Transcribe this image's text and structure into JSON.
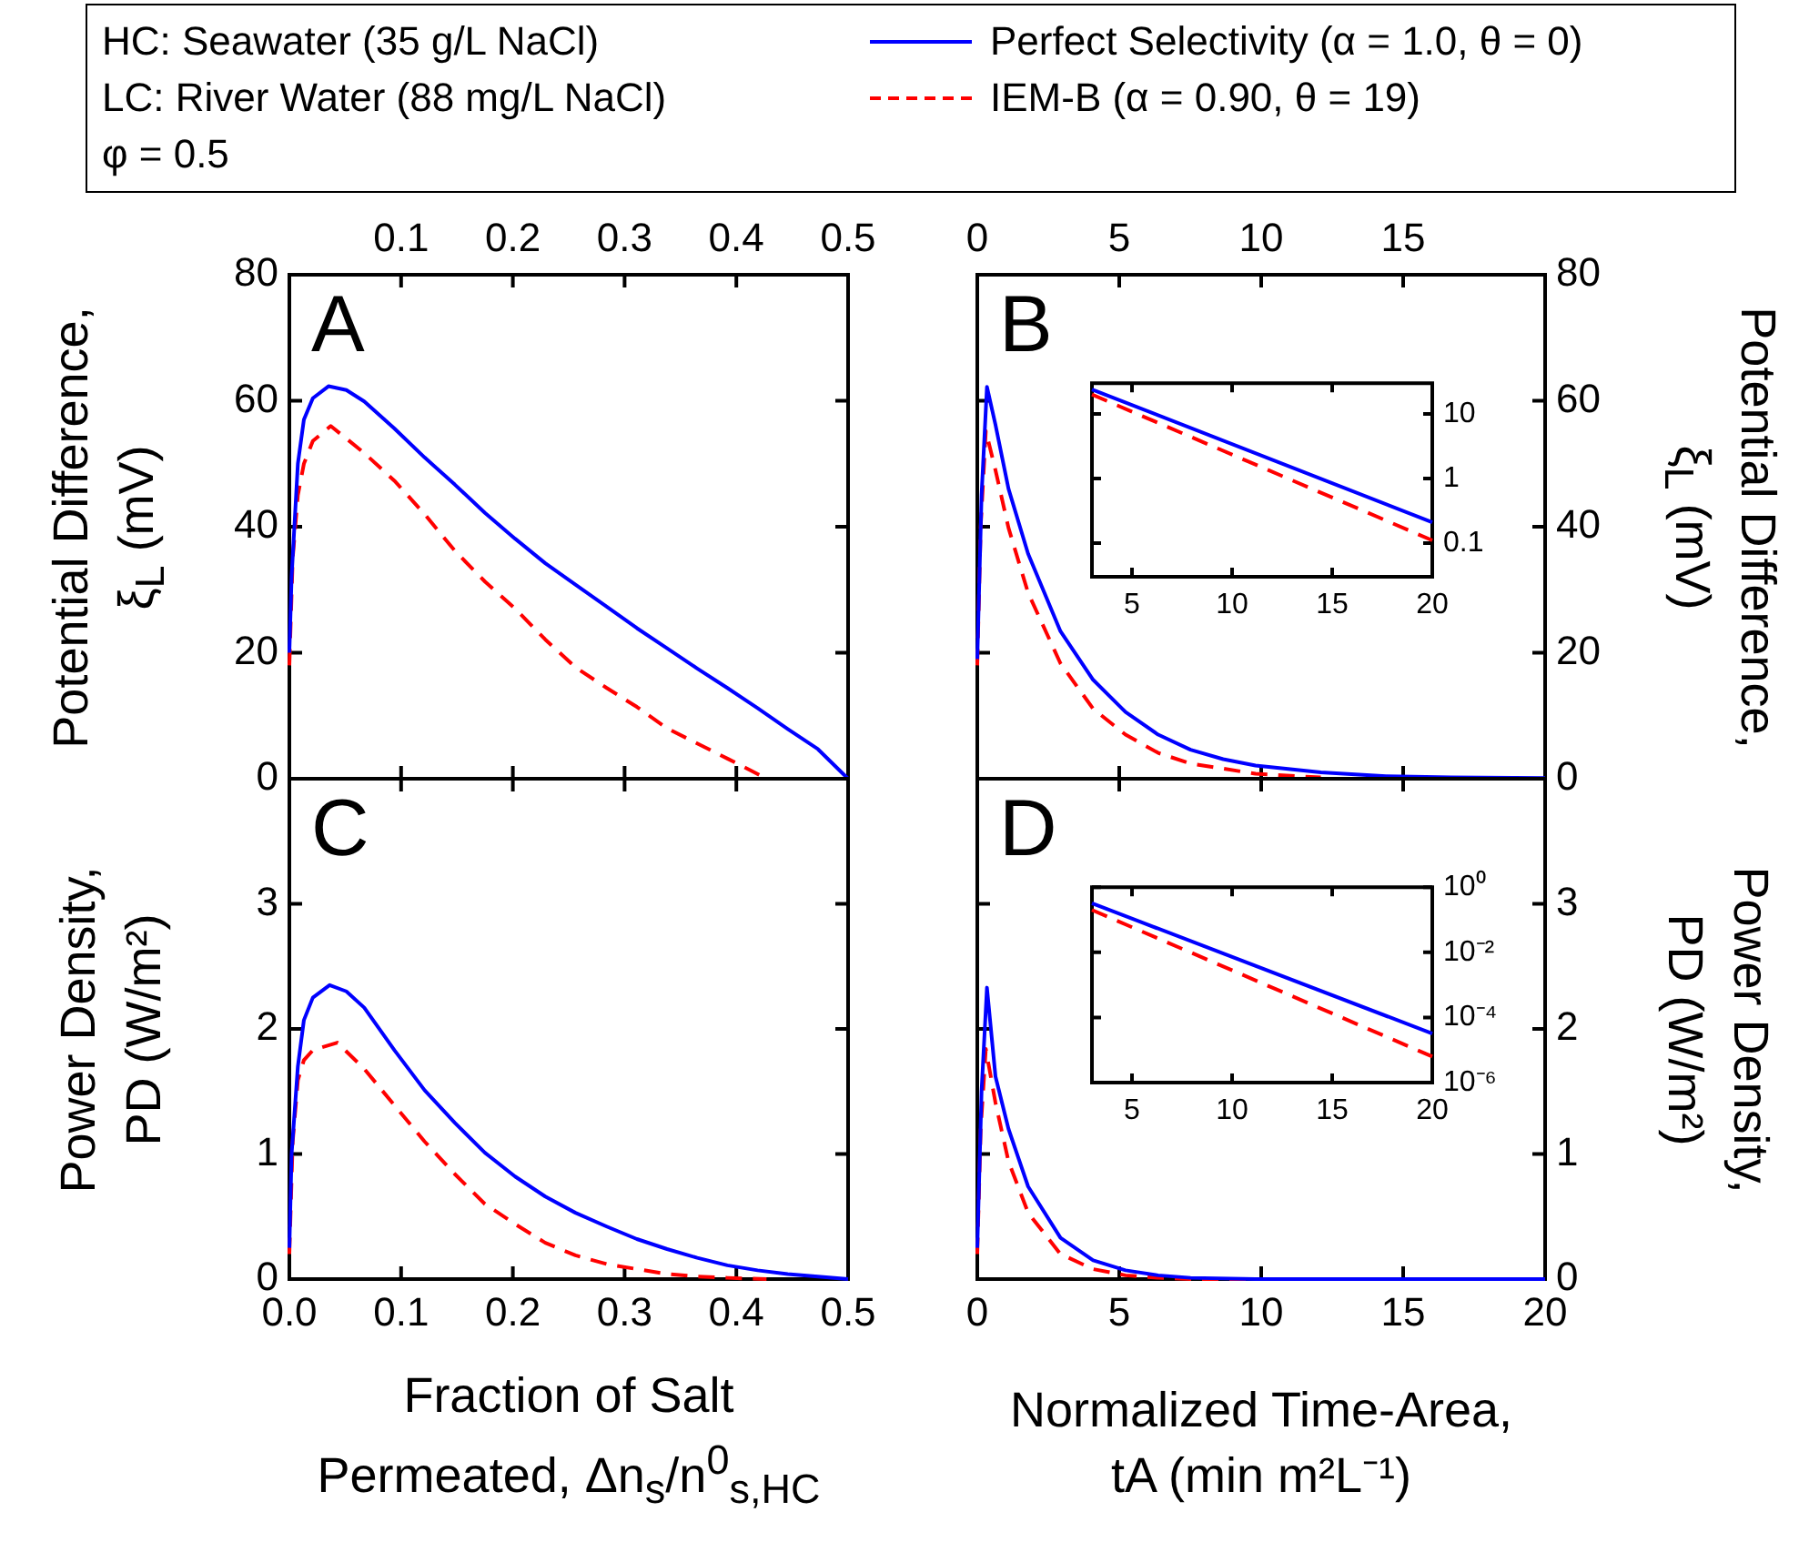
{
  "chart_data": [
    {
      "type": "line",
      "annotations": [
        "A"
      ],
      "legend": "top",
      "marker": "none",
      "ylabel": "Potential Difference,\nξ$_{L}$ (mV)",
      "tick_labels": "y",
      "xlim": [
        0,
        0.5
      ],
      "x2lim": [
        0,
        0.5
      ],
      "x2ticks": [
        {
          "value": 0,
          "label": null
        },
        0.1,
        0.2,
        0.3,
        0.4,
        0.5
      ],
      "ylim": [
        0,
        80
      ],
      "yticks": [
        0,
        20,
        40,
        60,
        80
      ],
      "series": [
        {
          "name": "Perfect Selectivity (α = 1.0, θ = 0)",
          "color": "#0000ff",
          "line_style": "solid",
          "x": [
            0,
            0.002,
            0.0076,
            0.013,
            0.021,
            0.035,
            0.051,
            0.067,
            0.094,
            0.121,
            0.148,
            0.175,
            0.202,
            0.229,
            0.256,
            0.284,
            0.311,
            0.338,
            0.365,
            0.392,
            0.419,
            0.446,
            0.473,
            0.5
          ],
          "values": [
            20,
            32,
            50,
            57,
            60.4,
            62.3,
            61.7,
            59.9,
            55.6,
            51,
            46.7,
            42.2,
            38.1,
            34.2,
            30.8,
            27.3,
            23.9,
            20.7,
            17.5,
            14.4,
            11.2,
            7.9,
            4.7,
            0
          ]
        },
        {
          "name": "IEM-B (α = 0.90, θ = 19)",
          "color": "#ff0000",
          "line_style": "dashed",
          "x": [
            0,
            0.003,
            0.0076,
            0.013,
            0.021,
            0.037,
            0.067,
            0.094,
            0.121,
            0.148,
            0.175,
            0.202,
            0.229,
            0.256,
            0.284,
            0.311,
            0.338,
            0.365,
            0.392,
            0.413,
            0.427
          ],
          "values": [
            18,
            35,
            45,
            50,
            53.6,
            56,
            51.7,
            47.3,
            42,
            36.2,
            31.3,
            27,
            22.1,
            17.7,
            14.4,
            11.4,
            8,
            5.6,
            3.2,
            1.3,
            0
          ]
        }
      ]
    },
    {
      "type": "line",
      "annotations": [
        "B"
      ],
      "marker": "none",
      "y2label": "Potential Difference,\nξ$_{L}$ (mV)",
      "tick_labels": "y",
      "xlim": [
        0,
        20
      ],
      "x2lim": [
        0,
        20
      ],
      "x2ticks": [
        0,
        5,
        10,
        15,
        {
          "value": 20,
          "label": null
        }
      ],
      "y2lim": [
        0,
        80
      ],
      "y2ticks": [
        0,
        20,
        40,
        60,
        80
      ],
      "series": [
        {
          "color": "#0000ff",
          "line_style": "solid",
          "axis": "y2",
          "x": [
            0,
            0.15,
            0.34,
            0.64,
            1.1,
            1.79,
            2.93,
            4.08,
            5.22,
            6.37,
            7.51,
            8.66,
            9.8,
            12.1,
            14.4,
            16.7,
            20
          ],
          "values": [
            19,
            45,
            62.2,
            56.2,
            46,
            35.7,
            23.4,
            15.7,
            10.6,
            7,
            4.6,
            3.1,
            2.1,
            1,
            0.4,
            0.2,
            0.1
          ]
        },
        {
          "color": "#ff0000",
          "line_style": "dashed",
          "axis": "y2",
          "x": [
            0,
            0.12,
            0.3,
            0.64,
            1.1,
            1.79,
            2.93,
            4.08,
            5.22,
            6.37,
            7.51,
            9.8,
            12.1
          ],
          "values": [
            18,
            40,
            55.2,
            49,
            39.8,
            29.5,
            18.3,
            11.1,
            7,
            4.1,
            2.4,
            0.8,
            0.2
          ]
        }
      ]
    },
    {
      "type": "line",
      "annotations": [
        "C"
      ],
      "marker": "none",
      "ylabel": "Power Density,\nPD (W/m²)",
      "xlabel": "Fraction of Salt\nPermeated, Δn$_{s}$/n$^{0}$$_{s,HC}$",
      "xlim": [
        0,
        0.5
      ],
      "xticks": [
        {
          "value": 0,
          "label": "0.0"
        },
        0.1,
        0.2,
        0.3,
        0.4,
        0.5
      ],
      "ylim": [
        0,
        4
      ],
      "yticks": [
        0,
        1,
        2,
        3
      ],
      "series": [
        {
          "color": "#0000ff",
          "line_style": "solid",
          "x": [
            0,
            0.002,
            0.0076,
            0.013,
            0.021,
            0.036,
            0.051,
            0.067,
            0.094,
            0.121,
            0.148,
            0.175,
            0.202,
            0.229,
            0.256,
            0.284,
            0.311,
            0.338,
            0.365,
            0.392,
            0.419,
            0.446,
            0.473,
            0.5
          ],
          "values": [
            0.25,
            1,
            1.7,
            2.07,
            2.25,
            2.35,
            2.3,
            2.17,
            1.83,
            1.51,
            1.25,
            1.01,
            0.82,
            0.66,
            0.53,
            0.42,
            0.32,
            0.24,
            0.17,
            0.11,
            0.07,
            0.04,
            0.02,
            0
          ]
        },
        {
          "color": "#ff0000",
          "line_style": "dashed",
          "x": [
            0,
            0.003,
            0.0076,
            0.013,
            0.021,
            0.043,
            0.067,
            0.094,
            0.121,
            0.148,
            0.175,
            0.202,
            0.229,
            0.256,
            0.284,
            0.311,
            0.338,
            0.365,
            0.392,
            0.427
          ],
          "values": [
            0.2,
            1.1,
            1.59,
            1.75,
            1.83,
            1.89,
            1.68,
            1.39,
            1.1,
            0.84,
            0.6,
            0.44,
            0.29,
            0.19,
            0.12,
            0.08,
            0.04,
            0.02,
            0.01,
            0
          ]
        }
      ]
    },
    {
      "type": "line",
      "annotations": [
        "D"
      ],
      "marker": "none",
      "y2label": "Power Density,\nPD (W/m²)",
      "xlabel": "Normalized Time-Area,\ntA (min m²L⁻¹)",
      "xlim": [
        0,
        20
      ],
      "xticks": [
        0,
        5,
        10,
        15,
        20
      ],
      "y2lim": [
        0,
        4
      ],
      "y2ticks": [
        0,
        1,
        2,
        3
      ],
      "series": [
        {
          "color": "#0000ff",
          "line_style": "solid",
          "axis": "y2",
          "x": [
            0,
            0.15,
            0.34,
            0.64,
            1.1,
            1.79,
            2.93,
            4.08,
            5.22,
            6.37,
            7.51,
            9.8,
            20
          ],
          "values": [
            0.25,
            1.5,
            2.33,
            1.62,
            1.2,
            0.74,
            0.33,
            0.15,
            0.07,
            0.03,
            0.01,
            0,
            0
          ]
        },
        {
          "color": "#ff0000",
          "line_style": "dashed",
          "axis": "y2",
          "x": [
            0,
            0.12,
            0.3,
            0.64,
            1.1,
            1.79,
            2.93,
            4.08,
            5.22,
            6.37,
            7.51,
            20
          ],
          "values": [
            0.2,
            1.2,
            1.84,
            1.41,
            0.94,
            0.53,
            0.2,
            0.08,
            0.03,
            0.01,
            0,
            0
          ]
        }
      ]
    },
    {
      "type": "line",
      "marker": "none",
      "log": "y2",
      "xlim": [
        3,
        20
      ],
      "xticks": [
        5,
        10,
        15,
        20
      ],
      "y2lim": [
        0.03,
        30
      ],
      "y2ticks": [
        0.1,
        1,
        10
      ],
      "series": [
        {
          "color": "#0000ff",
          "line_style": "solid",
          "axis": "y2",
          "x": [
            3,
            20
          ],
          "values": [
            24,
            0.21
          ]
        },
        {
          "color": "#ff0000",
          "line_style": "dashed",
          "axis": "y2",
          "x": [
            3,
            20
          ],
          "values": [
            20,
            0.11
          ]
        }
      ]
    },
    {
      "type": "line",
      "marker": "none",
      "log": "y2",
      "xlim": [
        3,
        20
      ],
      "xticks": [
        5,
        10,
        15,
        20
      ],
      "y2lim": [
        1e-06,
        1
      ],
      "y2ticks": [
        {
          "value": 1,
          "label": "10⁰"
        },
        {
          "value": 0.01,
          "label": "10⁻²"
        },
        {
          "value": 0.0001,
          "label": "10⁻⁴"
        },
        {
          "value": 1e-06,
          "label": "10⁻⁶"
        }
      ],
      "series": [
        {
          "color": "#0000ff",
          "line_style": "solid",
          "axis": "y2",
          "x": [
            3,
            20
          ],
          "values": [
            0.32,
            3.2e-05
          ]
        },
        {
          "color": "#ff0000",
          "line_style": "dashed",
          "axis": "y2",
          "x": [
            3,
            20
          ],
          "values": [
            0.2,
            6.3e-06
          ]
        }
      ]
    },
    {
      "type": "other",
      "annotations": [
        "HC: Seawater (35 g/L NaCl)",
        "LC: River Water (88 mg/L NaCl)",
        "φ = 0.5"
      ]
    }
  ]
}
